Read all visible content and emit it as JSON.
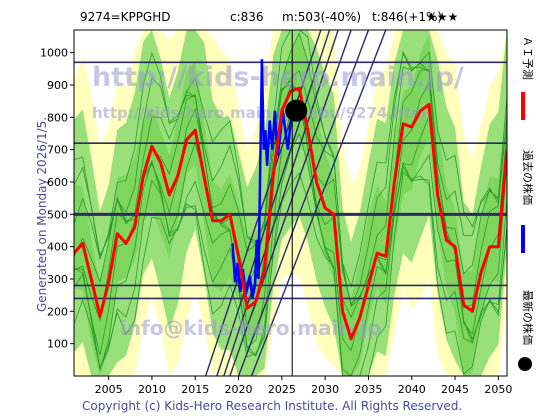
{
  "header": {
    "symbol": "9274=KPPGHD",
    "current": "c:836",
    "min": "m:503(-40%)",
    "target": "t:846(+1%)",
    "stars": "★★★"
  },
  "side_label": "Generated on Monday 2026/1/5.",
  "copyright": "Copyright (c) Kids-Hero Research Institute. All Rights Reserved.",
  "watermark": {
    "line1": "http://kids-hero.main.jp/",
    "line2": "http://kids-hero.main.jp/kabu/9274.html",
    "line3": "info@kids-hero.main.jp"
  },
  "legend": [
    {
      "text": "ＡＩ予測",
      "color": "#ff0000"
    },
    {
      "text": "過去の株価",
      "color": "#0000ff"
    },
    {
      "text": "最新の株価",
      "color": "#000000"
    }
  ],
  "colors": {
    "band_green": "#99e07a",
    "band_yellow": "#ffffbb",
    "thin_green": "#2a9a2a",
    "hline": "#2b2b6b",
    "diag": "#2b2b6b",
    "plot_border": "#000000"
  },
  "chart_data": {
    "type": "line",
    "xlim": [
      2001,
      2051
    ],
    "ylim": [
      0,
      1070
    ],
    "x_ticks": [
      2005,
      2010,
      2015,
      2020,
      2025,
      2030,
      2035,
      2040,
      2045,
      2050
    ],
    "y_ticks": [
      100,
      200,
      300,
      400,
      500,
      600,
      700,
      800,
      900,
      1000
    ],
    "horizontal_lines": [
      970,
      720,
      500,
      280,
      240
    ],
    "latest_point": {
      "x": 2026.2,
      "y": 836
    },
    "series": [
      {
        "role": "prediction",
        "x": [
          2001,
          2002,
          2003,
          2004,
          2005,
          2006,
          2007,
          2008,
          2009,
          2010,
          2011,
          2012,
          2013,
          2014,
          2015,
          2016,
          2017,
          2018,
          2019,
          2020,
          2021,
          2022,
          2023,
          2024,
          2025,
          2026,
          2027,
          2028,
          2029,
          2030,
          2031,
          2032,
          2033,
          2034,
          2035,
          2036,
          2037,
          2038,
          2039,
          2040,
          2041,
          2042,
          2043,
          2044,
          2045,
          2046,
          2047,
          2048,
          2049,
          2050,
          2051
        ],
        "y": [
          380,
          410,
          300,
          185,
          290,
          440,
          410,
          460,
          620,
          710,
          660,
          560,
          620,
          730,
          760,
          620,
          480,
          480,
          500,
          370,
          210,
          230,
          330,
          620,
          820,
          880,
          890,
          760,
          600,
          520,
          500,
          200,
          115,
          180,
          280,
          380,
          370,
          600,
          780,
          770,
          820,
          840,
          560,
          420,
          400,
          220,
          200,
          320,
          400,
          400,
          700
        ]
      },
      {
        "role": "past",
        "x": [
          2019.3,
          2019.6,
          2019.9,
          2020.2,
          2020.5,
          2020.8,
          2021.0,
          2021.3,
          2021.6,
          2021.9,
          2022.1,
          2022.3,
          2022.5,
          2022.7,
          2022.9,
          2023.1,
          2023.3,
          2023.6,
          2023.9,
          2024.2,
          2024.5,
          2024.8,
          2025.1,
          2025.4,
          2025.7,
          2026.0,
          2026.2
        ],
        "y": [
          410,
          290,
          350,
          260,
          330,
          250,
          270,
          310,
          240,
          280,
          420,
          300,
          640,
          980,
          700,
          760,
          650,
          790,
          700,
          820,
          680,
          740,
          820,
          760,
          700,
          780,
          836
        ]
      }
    ]
  }
}
